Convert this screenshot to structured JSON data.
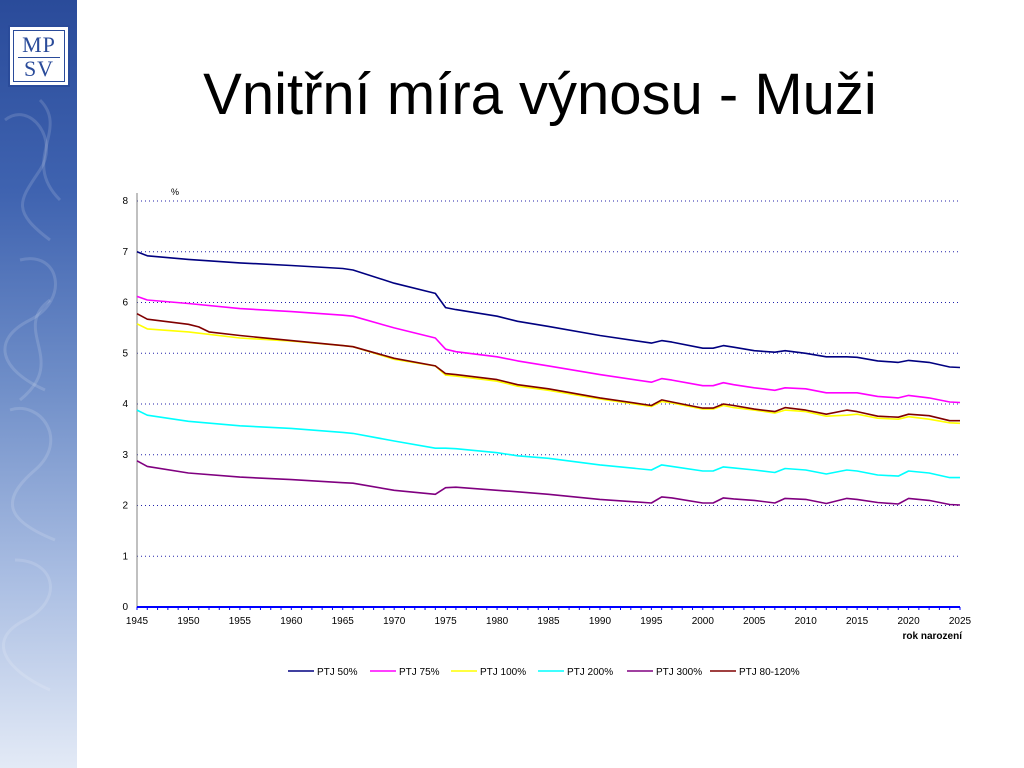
{
  "slide": {
    "title": "Vnitřní míra výnosu - Muži",
    "logo_text": [
      "MP",
      "SV"
    ]
  },
  "colors": {
    "band_dark": "#2a4b9a",
    "band_light": "#e3eaf6",
    "axis": "#0000ff",
    "grid": "#2222aa"
  },
  "chart_data": {
    "type": "line",
    "title": "",
    "ylabel": "%",
    "xlabel": "rok narození",
    "xlim": [
      1945,
      2025
    ],
    "ylim": [
      0,
      8
    ],
    "x_ticks": [
      1945,
      1950,
      1955,
      1960,
      1965,
      1970,
      1975,
      1980,
      1985,
      1990,
      1995,
      2000,
      2005,
      2010,
      2015,
      2020,
      2025
    ],
    "y_ticks": [
      0,
      1,
      2,
      3,
      4,
      5,
      6,
      7,
      8
    ],
    "grid": "horizontal dotted",
    "legend_position": "bottom",
    "series": [
      {
        "name": "PTJ 50%",
        "color": "#000080",
        "points": [
          [
            1945,
            7.0
          ],
          [
            1946,
            6.92
          ],
          [
            1950,
            6.85
          ],
          [
            1955,
            6.78
          ],
          [
            1960,
            6.73
          ],
          [
            1965,
            6.67
          ],
          [
            1966,
            6.64
          ],
          [
            1970,
            6.38
          ],
          [
            1974,
            6.18
          ],
          [
            1975,
            5.9
          ],
          [
            1976,
            5.86
          ],
          [
            1980,
            5.73
          ],
          [
            1982,
            5.63
          ],
          [
            1985,
            5.53
          ],
          [
            1990,
            5.35
          ],
          [
            1995,
            5.2
          ],
          [
            1996,
            5.25
          ],
          [
            1997,
            5.22
          ],
          [
            2000,
            5.1
          ],
          [
            2001,
            5.1
          ],
          [
            2002,
            5.15
          ],
          [
            2003,
            5.12
          ],
          [
            2005,
            5.05
          ],
          [
            2007,
            5.02
          ],
          [
            2008,
            5.05
          ],
          [
            2010,
            5.0
          ],
          [
            2012,
            4.93
          ],
          [
            2014,
            4.93
          ],
          [
            2015,
            4.92
          ],
          [
            2017,
            4.85
          ],
          [
            2019,
            4.82
          ],
          [
            2020,
            4.86
          ],
          [
            2022,
            4.82
          ],
          [
            2024,
            4.73
          ],
          [
            2025,
            4.72
          ]
        ]
      },
      {
        "name": "PTJ 75%",
        "color": "#ff00ff",
        "points": [
          [
            1945,
            6.12
          ],
          [
            1946,
            6.05
          ],
          [
            1950,
            5.98
          ],
          [
            1955,
            5.88
          ],
          [
            1960,
            5.82
          ],
          [
            1965,
            5.75
          ],
          [
            1966,
            5.73
          ],
          [
            1970,
            5.5
          ],
          [
            1974,
            5.3
          ],
          [
            1975,
            5.08
          ],
          [
            1976,
            5.03
          ],
          [
            1980,
            4.93
          ],
          [
            1982,
            4.85
          ],
          [
            1985,
            4.75
          ],
          [
            1990,
            4.58
          ],
          [
            1995,
            4.43
          ],
          [
            1996,
            4.5
          ],
          [
            1997,
            4.47
          ],
          [
            2000,
            4.36
          ],
          [
            2001,
            4.36
          ],
          [
            2002,
            4.42
          ],
          [
            2003,
            4.38
          ],
          [
            2005,
            4.32
          ],
          [
            2007,
            4.27
          ],
          [
            2008,
            4.32
          ],
          [
            2010,
            4.3
          ],
          [
            2012,
            4.22
          ],
          [
            2014,
            4.22
          ],
          [
            2015,
            4.22
          ],
          [
            2017,
            4.15
          ],
          [
            2019,
            4.12
          ],
          [
            2020,
            4.17
          ],
          [
            2022,
            4.12
          ],
          [
            2024,
            4.04
          ],
          [
            2025,
            4.03
          ]
        ]
      },
      {
        "name": "PTJ 100%",
        "color": "#ffff00",
        "points": [
          [
            1945,
            5.58
          ],
          [
            1946,
            5.48
          ],
          [
            1950,
            5.42
          ],
          [
            1955,
            5.3
          ],
          [
            1960,
            5.24
          ],
          [
            1965,
            5.15
          ],
          [
            1966,
            5.13
          ],
          [
            1970,
            4.88
          ],
          [
            1974,
            4.75
          ],
          [
            1975,
            4.57
          ],
          [
            1976,
            4.55
          ],
          [
            1980,
            4.45
          ],
          [
            1982,
            4.35
          ],
          [
            1985,
            4.27
          ],
          [
            1990,
            4.1
          ],
          [
            1995,
            3.95
          ],
          [
            1996,
            4.05
          ],
          [
            1997,
            4.02
          ],
          [
            2000,
            3.9
          ],
          [
            2001,
            3.9
          ],
          [
            2002,
            3.97
          ],
          [
            2003,
            3.93
          ],
          [
            2005,
            3.88
          ],
          [
            2007,
            3.82
          ],
          [
            2008,
            3.88
          ],
          [
            2010,
            3.85
          ],
          [
            2012,
            3.76
          ],
          [
            2014,
            3.78
          ],
          [
            2015,
            3.8
          ],
          [
            2017,
            3.72
          ],
          [
            2019,
            3.7
          ],
          [
            2020,
            3.75
          ],
          [
            2022,
            3.7
          ],
          [
            2024,
            3.63
          ],
          [
            2025,
            3.62
          ]
        ]
      },
      {
        "name": "PTJ 200%",
        "color": "#00ffff",
        "points": [
          [
            1945,
            3.88
          ],
          [
            1946,
            3.78
          ],
          [
            1950,
            3.66
          ],
          [
            1955,
            3.57
          ],
          [
            1960,
            3.52
          ],
          [
            1965,
            3.44
          ],
          [
            1966,
            3.42
          ],
          [
            1970,
            3.27
          ],
          [
            1974,
            3.13
          ],
          [
            1975,
            3.13
          ],
          [
            1976,
            3.12
          ],
          [
            1980,
            3.04
          ],
          [
            1982,
            2.98
          ],
          [
            1985,
            2.93
          ],
          [
            1990,
            2.8
          ],
          [
            1995,
            2.7
          ],
          [
            1996,
            2.8
          ],
          [
            1997,
            2.77
          ],
          [
            2000,
            2.68
          ],
          [
            2001,
            2.68
          ],
          [
            2002,
            2.76
          ],
          [
            2003,
            2.74
          ],
          [
            2005,
            2.7
          ],
          [
            2007,
            2.65
          ],
          [
            2008,
            2.73
          ],
          [
            2010,
            2.7
          ],
          [
            2012,
            2.62
          ],
          [
            2014,
            2.7
          ],
          [
            2015,
            2.68
          ],
          [
            2017,
            2.6
          ],
          [
            2019,
            2.58
          ],
          [
            2020,
            2.68
          ],
          [
            2022,
            2.64
          ],
          [
            2024,
            2.55
          ],
          [
            2025,
            2.55
          ]
        ]
      },
      {
        "name": "PTJ 300%",
        "color": "#800080",
        "points": [
          [
            1945,
            2.88
          ],
          [
            1946,
            2.77
          ],
          [
            1950,
            2.64
          ],
          [
            1955,
            2.56
          ],
          [
            1960,
            2.51
          ],
          [
            1965,
            2.45
          ],
          [
            1966,
            2.44
          ],
          [
            1970,
            2.3
          ],
          [
            1974,
            2.22
          ],
          [
            1975,
            2.35
          ],
          [
            1976,
            2.36
          ],
          [
            1980,
            2.3
          ],
          [
            1982,
            2.27
          ],
          [
            1985,
            2.22
          ],
          [
            1990,
            2.12
          ],
          [
            1995,
            2.05
          ],
          [
            1996,
            2.17
          ],
          [
            1997,
            2.15
          ],
          [
            2000,
            2.05
          ],
          [
            2001,
            2.05
          ],
          [
            2002,
            2.15
          ],
          [
            2003,
            2.13
          ],
          [
            2005,
            2.1
          ],
          [
            2007,
            2.05
          ],
          [
            2008,
            2.14
          ],
          [
            2010,
            2.12
          ],
          [
            2012,
            2.04
          ],
          [
            2014,
            2.14
          ],
          [
            2015,
            2.12
          ],
          [
            2017,
            2.06
          ],
          [
            2019,
            2.03
          ],
          [
            2020,
            2.14
          ],
          [
            2022,
            2.1
          ],
          [
            2024,
            2.02
          ],
          [
            2025,
            2.01
          ]
        ]
      },
      {
        "name": "PTJ 80-120%",
        "color": "#800000",
        "points": [
          [
            1945,
            5.78
          ],
          [
            1946,
            5.67
          ],
          [
            1950,
            5.57
          ],
          [
            1951,
            5.52
          ],
          [
            1952,
            5.42
          ],
          [
            1955,
            5.35
          ],
          [
            1960,
            5.25
          ],
          [
            1965,
            5.15
          ],
          [
            1966,
            5.13
          ],
          [
            1970,
            4.9
          ],
          [
            1974,
            4.75
          ],
          [
            1975,
            4.6
          ],
          [
            1976,
            4.58
          ],
          [
            1980,
            4.48
          ],
          [
            1982,
            4.38
          ],
          [
            1985,
            4.3
          ],
          [
            1990,
            4.12
          ],
          [
            1995,
            3.97
          ],
          [
            1996,
            4.08
          ],
          [
            1997,
            4.04
          ],
          [
            2000,
            3.92
          ],
          [
            2001,
            3.92
          ],
          [
            2002,
            4.0
          ],
          [
            2003,
            3.97
          ],
          [
            2005,
            3.9
          ],
          [
            2007,
            3.85
          ],
          [
            2008,
            3.93
          ],
          [
            2010,
            3.88
          ],
          [
            2012,
            3.8
          ],
          [
            2014,
            3.88
          ],
          [
            2015,
            3.85
          ],
          [
            2017,
            3.76
          ],
          [
            2019,
            3.74
          ],
          [
            2020,
            3.8
          ],
          [
            2022,
            3.77
          ],
          [
            2024,
            3.67
          ],
          [
            2025,
            3.67
          ]
        ]
      }
    ]
  }
}
